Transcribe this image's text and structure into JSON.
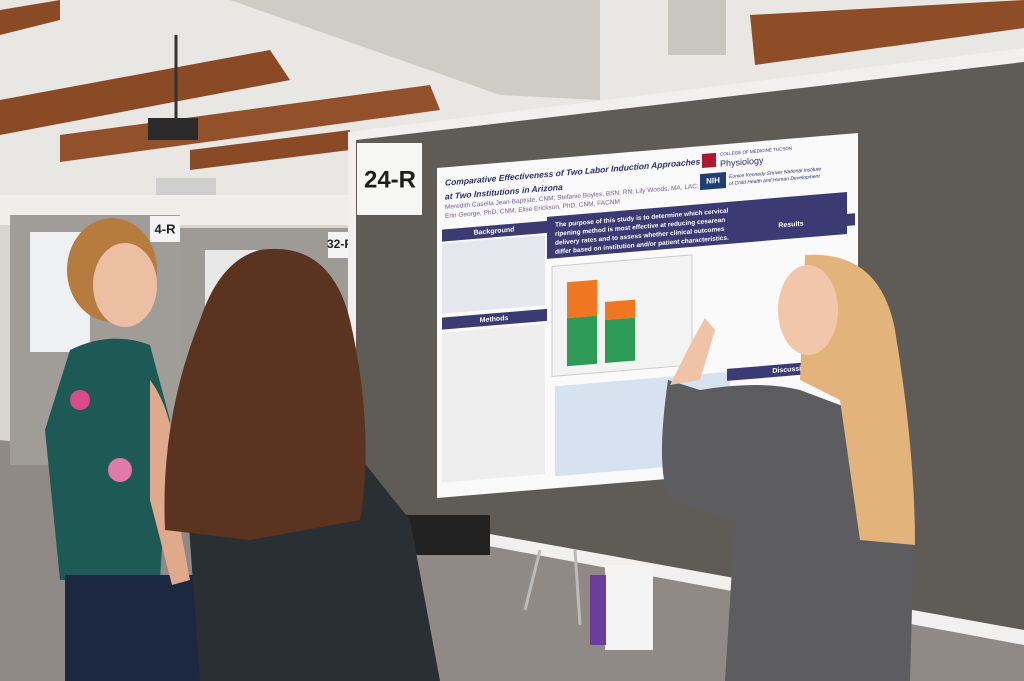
{
  "scene": {
    "signs": {
      "main": "24-R",
      "middle": "32-R",
      "left": "4-R"
    },
    "poster": {
      "title_lines": [
        "Comparative Effectiveness of Two Labor Induction Approaches",
        "at Two Institutions in Arizona"
      ],
      "author_lines": [
        "Meredith Casella Jean-Baptiste, CNM; Stefanie Boyles, BSN, RN; Lily Woods, MA, LAC;",
        "Erin George, PhD, CNM; Elise Erickson, PhD, CNM, FACNM"
      ],
      "college": "COLLEGE OF MEDICINE TUCSON",
      "department": "Physiology",
      "nih": "NIH",
      "nih_lines": [
        "Eunice Kennedy Shriver National Institute",
        "of Child Health and Human Development"
      ],
      "purpose_lines": [
        "The purpose of this study is to determine which cervical",
        "ripening method is most effective at reducing cesarean",
        "delivery rates and to assess whether clinical outcomes",
        "differ based on institution and/or patient characteristics."
      ],
      "sections": {
        "background": "Background",
        "methods": "Methods",
        "results": "Results",
        "discussion": "Discussion"
      }
    }
  }
}
